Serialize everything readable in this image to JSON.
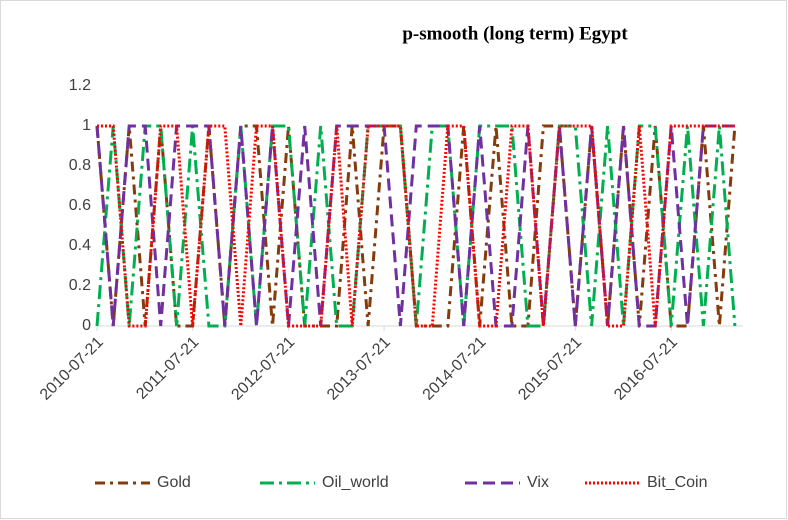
{
  "chart_data": {
    "type": "line",
    "title": "p-smooth (long term) Egypt",
    "x": [
      "2010-07-21",
      "2010-09-21",
      "2010-11-21",
      "2011-01-21",
      "2011-03-21",
      "2011-05-21",
      "2011-07-21",
      "2011-09-21",
      "2011-11-21",
      "2012-01-21",
      "2012-03-21",
      "2012-05-21",
      "2012-07-21",
      "2012-09-21",
      "2012-11-21",
      "2013-01-21",
      "2013-03-21",
      "2013-05-21",
      "2013-07-21",
      "2013-09-21",
      "2013-11-21",
      "2014-01-21",
      "2014-03-21",
      "2014-05-21",
      "2014-07-21",
      "2014-09-21",
      "2014-11-21",
      "2015-01-21",
      "2015-03-21",
      "2015-05-21",
      "2015-07-21",
      "2015-09-21",
      "2015-11-21",
      "2016-01-21",
      "2016-03-21",
      "2016-05-21",
      "2016-07-21",
      "2016-09-21",
      "2016-11-21",
      "2017-01-21",
      "2017-03-21"
    ],
    "series": [
      {
        "name": "Gold",
        "color": "#843c0c",
        "dash": "10 5 3 5",
        "values": [
          1,
          0,
          1,
          0,
          1,
          0,
          0,
          1,
          0,
          1,
          1,
          0,
          1,
          0,
          0,
          0,
          1,
          0,
          1,
          1,
          0,
          0,
          0,
          1,
          0,
          1,
          0,
          0,
          1,
          1,
          0,
          1,
          0,
          1,
          0,
          1,
          0,
          0,
          1,
          0,
          1
        ]
      },
      {
        "name": "Oil_world",
        "color": "#00b050",
        "dash": "14 5 3 5",
        "values": [
          0,
          1,
          0,
          1,
          1,
          0,
          1,
          0,
          0,
          1,
          0,
          1,
          1,
          0,
          1,
          0,
          0,
          1,
          1,
          1,
          0,
          1,
          1,
          0,
          1,
          1,
          1,
          0,
          0,
          1,
          1,
          0,
          1,
          0,
          1,
          1,
          0,
          1,
          0,
          1,
          0
        ]
      },
      {
        "name": "Vix",
        "color": "#7030a0",
        "dash": "12 6",
        "values": [
          1,
          0,
          1,
          1,
          0,
          1,
          1,
          1,
          0,
          1,
          0,
          1,
          0,
          1,
          0,
          1,
          1,
          1,
          1,
          0,
          1,
          1,
          1,
          0,
          1,
          0,
          0,
          1,
          0,
          1,
          0,
          1,
          0,
          1,
          0,
          0,
          1,
          0,
          1,
          1,
          1
        ]
      },
      {
        "name": "Bit_Coin",
        "color": "#ff0000",
        "dash": "2 2",
        "values": [
          1,
          1,
          0,
          0,
          1,
          1,
          0,
          1,
          1,
          0,
          1,
          1,
          0,
          0,
          0,
          1,
          0,
          1,
          1,
          1,
          0,
          0,
          1,
          1,
          0,
          0,
          1,
          1,
          0,
          1,
          1,
          1,
          0,
          0,
          1,
          0,
          1,
          1,
          1,
          1,
          1
        ]
      }
    ],
    "xlim": [
      "2010-07-21",
      "2017-04-21"
    ],
    "xticks": [
      "2010-07-21",
      "2011-07-21",
      "2012-07-21",
      "2013-07-21",
      "2014-07-21",
      "2015-07-21",
      "2016-07-21"
    ],
    "ylim": [
      0,
      1.2
    ],
    "yticks": [
      0,
      0.2,
      0.4,
      0.6,
      0.8,
      1,
      1.2
    ],
    "grid": false
  }
}
